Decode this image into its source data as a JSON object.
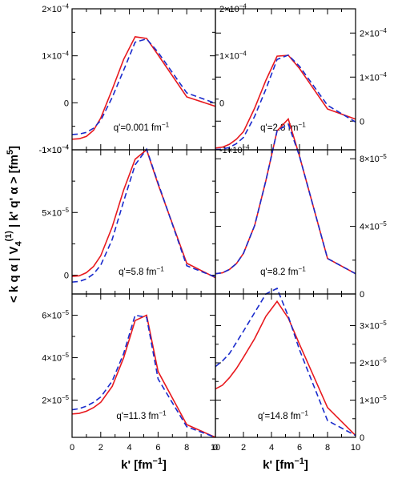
{
  "ylabel": "< k q α | V4(1) | k' q' α > [fm5]",
  "xlabel": "k' [fm-1]",
  "colors": {
    "solid": "#e8191e",
    "dashed": "#1a2bcc"
  },
  "chart_data": [
    {
      "type": "line",
      "annotation": "q'=0.001 fm-1",
      "xlim": [
        0,
        10
      ],
      "ylim": [
        -0.0001,
        0.0002
      ],
      "yticks": [
        -0.0001,
        0,
        0.0001,
        0.0002
      ],
      "ytick_labels": [
        "-1×10-4",
        "0",
        "1×10-4",
        "2×10-4"
      ],
      "ytick_side": "both",
      "series": [
        {
          "style": "solid",
          "x": [
            0,
            0.5,
            1,
            1.5,
            2,
            2.8,
            3.6,
            4.4,
            5.2,
            6,
            8,
            10
          ],
          "y": [
            -7.75e-05,
            -7.65e-05,
            -7.15e-05,
            -5.85e-05,
            -3.25e-05,
            2.85e-05,
            9.25e-05,
            0.0001405,
            0.000137,
            0.000102,
            1.25e-05,
            -7.5e-06
          ]
        },
        {
          "style": "dashed",
          "x": [
            0,
            0.5,
            1,
            1.5,
            2,
            2.8,
            3.6,
            4.4,
            5.2,
            6,
            8,
            10
          ],
          "y": [
            -6.75e-05,
            -6.65e-05,
            -6.3e-05,
            -5.4e-05,
            -3.75e-05,
            1.15e-05,
            6.95e-05,
            0.000129,
            0.000136,
            0.0001075,
            2.1e-05,
            -1e-06
          ]
        }
      ]
    },
    {
      "type": "line",
      "annotation": "q'=2.8 fm-1",
      "xlim": [
        0,
        10
      ],
      "ylim": [
        -6.5e-05,
        0.000255
      ],
      "yticks": [
        0,
        0.0001,
        0.0002
      ],
      "ytick_labels": [
        "0",
        "1×10-4",
        "2×10-4"
      ],
      "ytick_side": "right",
      "series": [
        {
          "style": "solid",
          "x": [
            0,
            0.5,
            1,
            1.5,
            2,
            2.8,
            3.6,
            4.4,
            5.2,
            6,
            8,
            10
          ],
          "y": [
            -6.1e-05,
            -5.9e-05,
            -5.25e-05,
            -4.1e-05,
            -2.4e-05,
            2.95e-05,
            9.25e-05,
            0.0001475,
            0.0001495,
            0.0001195,
            2.75e-05,
            4.5e-06
          ]
        },
        {
          "style": "dashed",
          "x": [
            0,
            0.5,
            1,
            1.5,
            2,
            2.8,
            3.6,
            4.4,
            5.2,
            6,
            8,
            10
          ],
          "y": [
            -6.45e-05,
            -6.35e-05,
            -5.95e-05,
            -5.1e-05,
            -3.7e-05,
            1.1e-05,
            7.25e-05,
            0.00014,
            0.00015,
            0.0001245,
            3.6e-05,
            -2e-06
          ]
        }
      ]
    },
    {
      "type": "line",
      "annotation": "q'=5.8 fm-1",
      "xlim": [
        0,
        10
      ],
      "ylim": [
        -1.5e-05,
        0.0001
      ],
      "yticks": [
        0,
        5e-05,
        0.0001
      ],
      "ytick_labels": [
        "0",
        "5×10-5",
        "1×10-4"
      ],
      "ytick_side": "left",
      "series": [
        {
          "style": "solid",
          "x": [
            0,
            0.5,
            1,
            1.5,
            2,
            2.8,
            3.6,
            4.4,
            5.2,
            6,
            8,
            10
          ],
          "y": [
            -1e-06,
            -5e-07,
            2e-06,
            7e-06,
            1.55e-05,
            3.85e-05,
            6.8e-05,
            9.25e-05,
            0.0001,
            7.25e-05,
            9.5e-06,
            -2e-06
          ]
        },
        {
          "style": "dashed",
          "x": [
            0,
            0.5,
            1,
            1.5,
            2,
            2.8,
            3.6,
            4.4,
            5.2,
            6,
            8,
            10
          ],
          "y": [
            -5.5e-06,
            -5e-06,
            -3e-06,
            1e-06,
            8e-06,
            2.85e-05,
            5.9e-05,
            8.8e-05,
            0.0001005,
            7.35e-05,
            7.5e-06,
            -1.5e-06
          ]
        }
      ]
    },
    {
      "type": "line",
      "annotation": "q'=8.2 fm-1",
      "xlim": [
        0,
        10
      ],
      "ylim": [
        0,
        8.53e-05
      ],
      "yticks": [
        0,
        4e-05,
        8e-05
      ],
      "ytick_labels": [
        "0",
        "4×10-5",
        "8×10-5"
      ],
      "ytick_side": "right",
      "series": [
        {
          "style": "solid",
          "x": [
            0,
            0.5,
            1,
            1.5,
            2,
            2.8,
            3.6,
            4.4,
            5.2,
            6,
            8,
            10
          ],
          "y": [
            1.2e-05,
            1.25e-05,
            1.45e-05,
            1.8e-05,
            2.4e-05,
            4.05e-05,
            6.7e-05,
            9.65e-05,
            0.0001035,
            8.15e-05,
            2.1e-05,
            1.2e-05
          ]
        },
        {
          "style": "dashed",
          "x": [
            0,
            0.5,
            1,
            1.5,
            2,
            2.8,
            3.6,
            4.4,
            5.2,
            6,
            8,
            10
          ],
          "y": [
            1.2e-05,
            1.25e-05,
            1.45e-05,
            1.8e-05,
            2.4e-05,
            4.05e-05,
            6.7e-05,
            9.65e-05,
            0.0001005,
            8.15e-05,
            2.1e-05,
            1.2e-05
          ]
        }
      ]
    },
    {
      "type": "line",
      "annotation": "q'=11.3 fm-1",
      "xlim": [
        0,
        10
      ],
      "ylim": [
        2.5e-06,
        7e-05
      ],
      "yticks": [
        2e-05,
        4e-05,
        6e-05
      ],
      "ytick_labels": [
        "2×10-5",
        "4×10-5",
        "6×10-5"
      ],
      "ytick_side": "left",
      "series": [
        {
          "style": "solid",
          "x": [
            0,
            0.5,
            1,
            1.5,
            2,
            2.8,
            3.6,
            4.4,
            5.2,
            6,
            8,
            10
          ],
          "y": [
            1.35e-05,
            1.38e-05,
            1.48e-05,
            1.65e-05,
            1.9e-05,
            2.65e-05,
            4e-05,
            5.75e-05,
            6e-05,
            3.35e-05,
            8.5e-06,
            2.5e-06
          ]
        },
        {
          "style": "dashed",
          "x": [
            0,
            0.5,
            1,
            1.5,
            2,
            2.8,
            3.6,
            4.4,
            5.2,
            6,
            8,
            10
          ],
          "y": [
            1.55e-05,
            1.6e-05,
            1.72e-05,
            1.9e-05,
            2.15e-05,
            2.9e-05,
            4.2e-05,
            6e-05,
            5.9e-05,
            3e-05,
            7.5e-06,
            2.5e-06
          ]
        }
      ]
    },
    {
      "type": "line",
      "annotation": "q'=14.8 fm-1",
      "xlim": [
        0,
        10
      ],
      "ylim": [
        0,
        3.85e-05
      ],
      "yticks": [
        0,
        1e-05,
        2e-05,
        3e-05
      ],
      "ytick_labels": [
        "0",
        "1×10-5",
        "2×10-5",
        "3×10-5"
      ],
      "ytick_side": "right",
      "series": [
        {
          "style": "solid",
          "x": [
            0,
            0.5,
            1,
            1.5,
            2,
            2.8,
            3.6,
            4.4,
            5.2,
            6,
            8,
            10
          ],
          "y": [
            1.3e-05,
            1.4e-05,
            1.6e-05,
            1.85e-05,
            2.15e-05,
            2.65e-05,
            3.25e-05,
            3.65e-05,
            3.2e-05,
            2.5e-05,
            8e-06,
            5e-07
          ]
        },
        {
          "style": "dashed",
          "x": [
            0,
            0.5,
            1,
            1.5,
            2,
            2.8,
            3.6,
            4.4,
            5.2,
            6,
            8,
            10
          ],
          "y": [
            1.9e-05,
            2.05e-05,
            2.25e-05,
            2.55e-05,
            2.85e-05,
            3.35e-05,
            3.85e-05,
            4e-05,
            3.25e-05,
            2.35e-05,
            4.5e-06,
            5e-07
          ]
        }
      ]
    }
  ],
  "xticks": [
    0,
    2,
    4,
    6,
    8,
    10
  ],
  "xtick_labels": [
    "0",
    "2",
    "4",
    "6",
    "8",
    "10"
  ]
}
